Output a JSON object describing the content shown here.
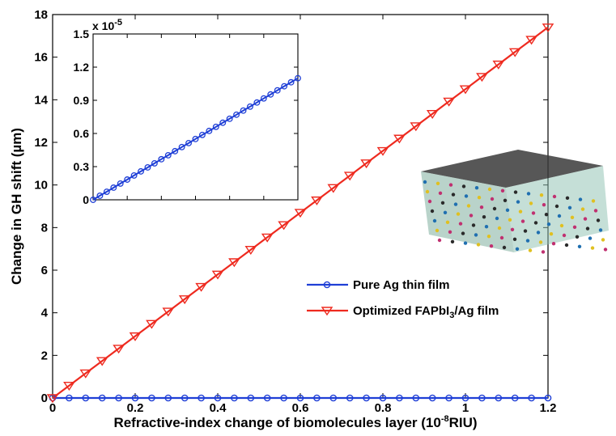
{
  "chart_data": [
    {
      "type": "line",
      "id": "main",
      "xlabel": "Refractive-index change of biomolecules layer (10",
      "xlabel_exponent": "-8",
      "xlabel_suffix": "RIU)",
      "ylabel": "Change in GH shift (µm)",
      "xlim": [
        0,
        1.2
      ],
      "ylim": [
        0,
        18
      ],
      "xticks": [
        "0",
        "0.2",
        "0.4",
        "0.6",
        "0.8",
        "1",
        "1.2"
      ],
      "yticks": [
        "0",
        "2",
        "4",
        "6",
        "8",
        "10",
        "12",
        "14",
        "16",
        "18"
      ],
      "grid": false,
      "legend_position": "center-right",
      "x": [
        0,
        0.04,
        0.08,
        0.12,
        0.16,
        0.2,
        0.24,
        0.28,
        0.32,
        0.36,
        0.4,
        0.44,
        0.48,
        0.52,
        0.56,
        0.6,
        0.64,
        0.68,
        0.72,
        0.76,
        0.8,
        0.84,
        0.88,
        0.92,
        0.96,
        1.0,
        1.04,
        1.08,
        1.12,
        1.16,
        1.2
      ],
      "series": [
        {
          "name": "Pure Ag thin film",
          "color": "#1f3fd6",
          "marker": "circle",
          "values": [
            0,
            0,
            0,
            0,
            0,
            0,
            0,
            0,
            0,
            0,
            0,
            0,
            0,
            0,
            0,
            0,
            0,
            0,
            0,
            0,
            0,
            0,
            0,
            0,
            0,
            0,
            0,
            0,
            0,
            0,
            0
          ]
        },
        {
          "name_prefix": "Optimized FAPbI",
          "name_sub": "3",
          "name_suffix": "/Ag film",
          "color": "#ee2a1f",
          "marker": "triangle-down",
          "values": [
            0,
            0.58,
            1.16,
            1.74,
            2.32,
            2.9,
            3.48,
            4.06,
            4.64,
            5.22,
            5.8,
            6.38,
            6.96,
            7.54,
            8.12,
            8.7,
            9.28,
            9.86,
            10.44,
            11.02,
            11.6,
            12.18,
            12.76,
            13.34,
            13.92,
            14.5,
            15.08,
            15.66,
            16.24,
            16.82,
            17.4
          ]
        }
      ]
    },
    {
      "type": "line",
      "id": "inset",
      "scale_label": "x 10",
      "scale_exponent": "-5",
      "xlim": [
        0,
        1.2
      ],
      "ylim": [
        0,
        1.5
      ],
      "yticks": [
        "0",
        "0.3",
        "0.6",
        "0.9",
        "1.2",
        "1.5"
      ],
      "grid": false,
      "x": [
        0,
        0.04,
        0.08,
        0.12,
        0.16,
        0.2,
        0.24,
        0.28,
        0.32,
        0.36,
        0.4,
        0.44,
        0.48,
        0.52,
        0.56,
        0.6,
        0.64,
        0.68,
        0.72,
        0.76,
        0.8,
        0.84,
        0.88,
        0.92,
        0.96,
        1.0,
        1.04,
        1.08,
        1.12,
        1.16,
        1.2
      ],
      "series": [
        {
          "name": "Pure Ag thin film",
          "color": "#1f3fd6",
          "marker": "circle",
          "values": [
            0,
            0.037,
            0.073,
            0.11,
            0.147,
            0.183,
            0.22,
            0.257,
            0.293,
            0.33,
            0.367,
            0.403,
            0.44,
            0.477,
            0.513,
            0.55,
            0.587,
            0.623,
            0.66,
            0.697,
            0.733,
            0.77,
            0.807,
            0.843,
            0.88,
            0.917,
            0.953,
            0.99,
            1.027,
            1.063,
            1.1
          ]
        }
      ]
    }
  ]
}
